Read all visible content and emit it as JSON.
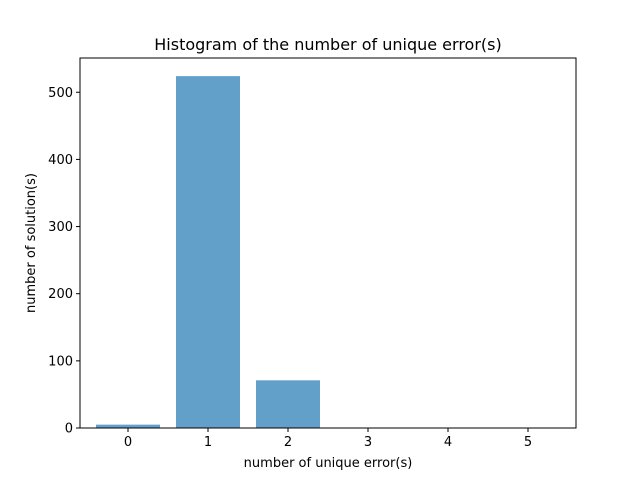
{
  "chart_data": {
    "type": "bar",
    "title": "Histogram of the number of unique error(s)",
    "xlabel": "number of unique error(s)",
    "ylabel": "number of solution(s)",
    "categories": [
      "0",
      "1",
      "2",
      "3",
      "4",
      "5"
    ],
    "x": [
      0,
      1,
      2,
      3,
      4,
      5
    ],
    "values": [
      5,
      524,
      71,
      0,
      0,
      0
    ],
    "xlim": [
      -0.6,
      5.6
    ],
    "ylim": [
      0,
      551
    ],
    "xticks": [
      0,
      1,
      2,
      3,
      4,
      5
    ],
    "yticks": [
      0,
      100,
      200,
      300,
      400,
      500
    ],
    "grid": false,
    "bar_color": "#1f77b4",
    "bar_opacity": 0.7
  }
}
